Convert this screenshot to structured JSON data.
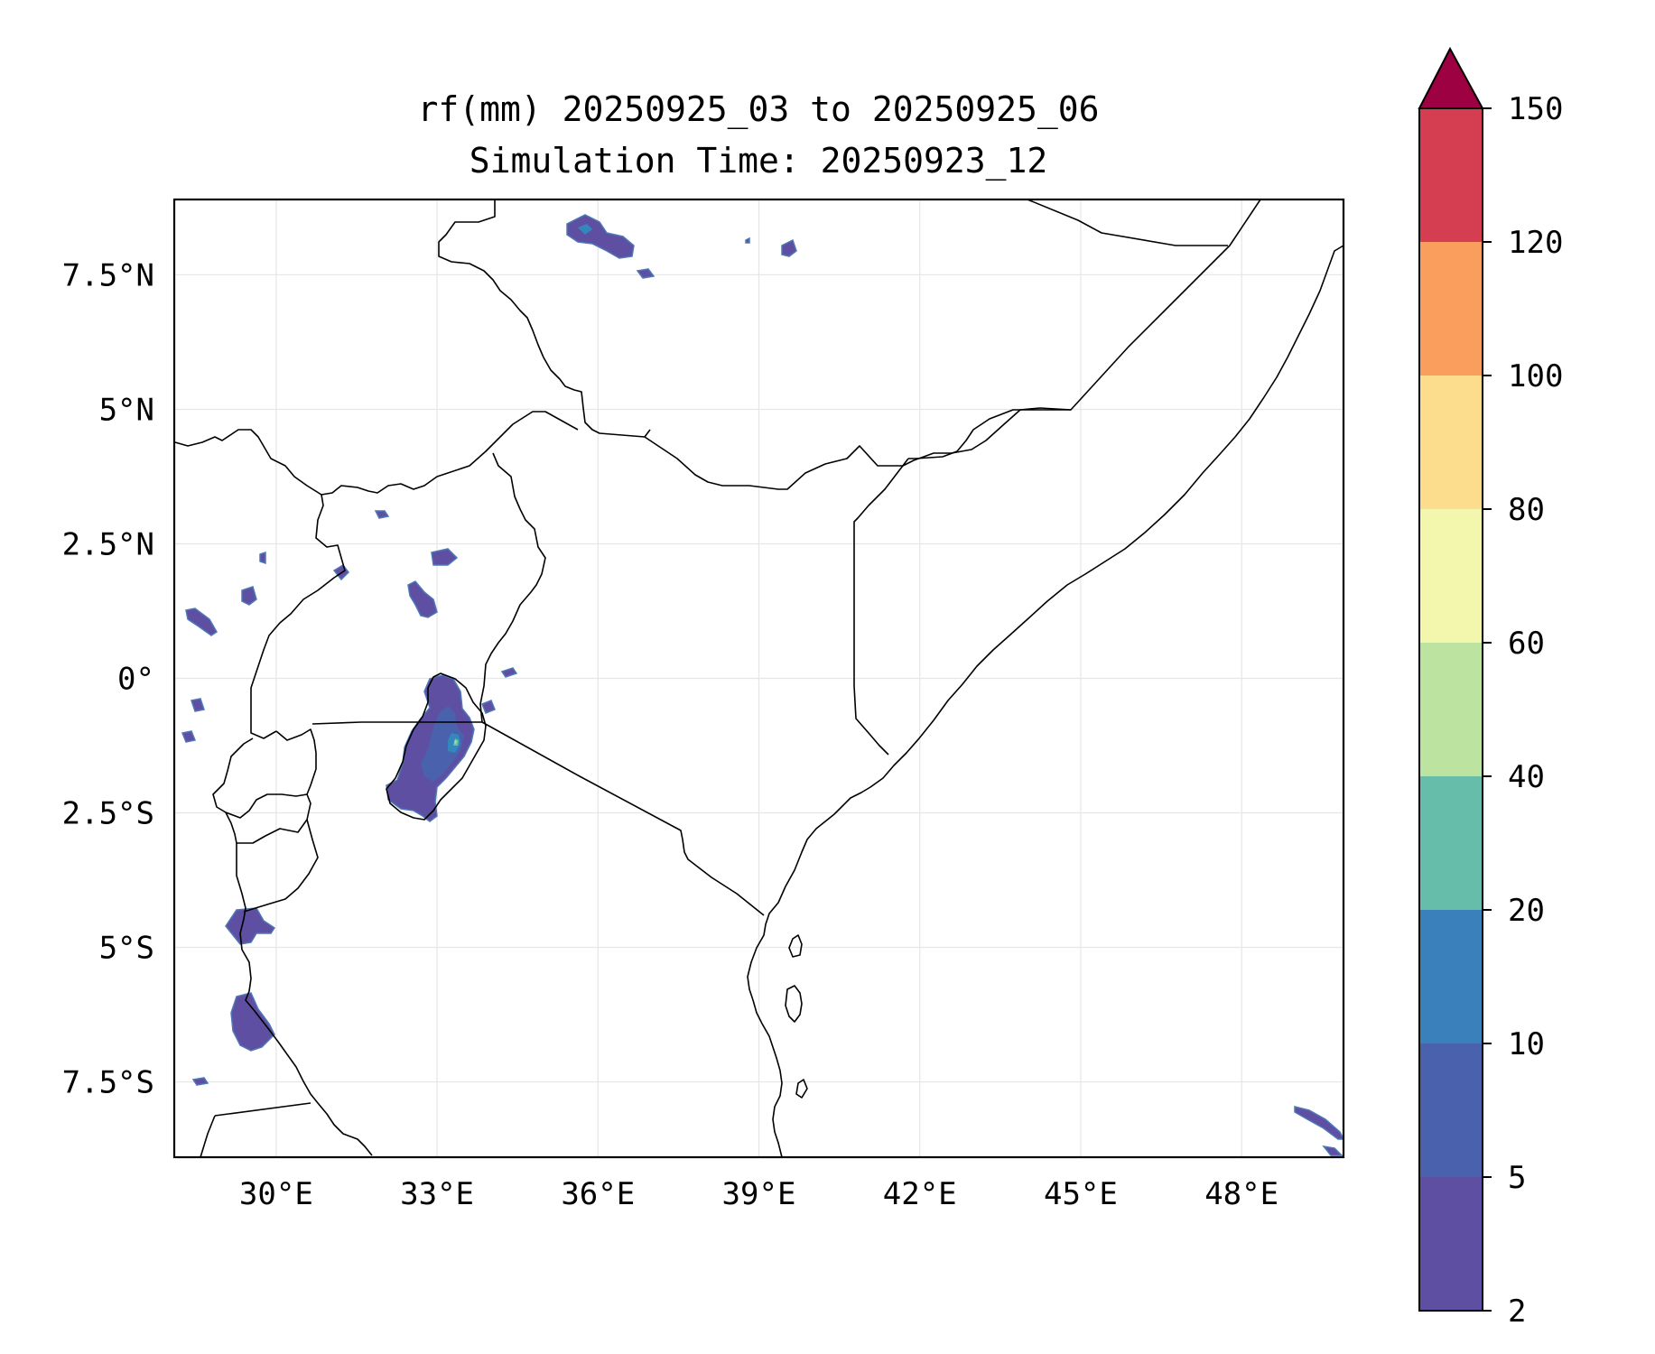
{
  "title": {
    "line1": "rf(mm) 20250925_03 to 20250925_06",
    "line2": "Simulation Time: 20250923_12"
  },
  "map": {
    "lon_range": [
      28.1,
      49.9
    ],
    "lat_range": [
      -8.9,
      8.9
    ],
    "x_ticks": [
      {
        "value": 30,
        "label": "30°E"
      },
      {
        "value": 33,
        "label": "33°E"
      },
      {
        "value": 36,
        "label": "36°E"
      },
      {
        "value": 39,
        "label": "39°E"
      },
      {
        "value": 42,
        "label": "42°E"
      },
      {
        "value": 45,
        "label": "45°E"
      },
      {
        "value": 48,
        "label": "48°E"
      }
    ],
    "y_ticks": [
      {
        "value": 7.5,
        "label": "7.5°N"
      },
      {
        "value": 5,
        "label": "5°N"
      },
      {
        "value": 2.5,
        "label": "2.5°N"
      },
      {
        "value": 0,
        "label": "0°"
      },
      {
        "value": -2.5,
        "label": "2.5°S"
      },
      {
        "value": -5,
        "label": "5°S"
      },
      {
        "value": -7.5,
        "label": "7.5°S"
      }
    ]
  },
  "colorbar": {
    "levels": [
      {
        "label": "2",
        "color": "#5e4fa2"
      },
      {
        "label": "5",
        "color": "#4a62ad"
      },
      {
        "label": "10",
        "color": "#3a80ba"
      },
      {
        "label": "20",
        "color": "#66bdaa"
      },
      {
        "label": "40",
        "color": "#bde3a0"
      },
      {
        "label": "60",
        "color": "#f3f7ae"
      },
      {
        "label": "80",
        "color": "#fbdd8d"
      },
      {
        "label": "100",
        "color": "#f99e5d"
      },
      {
        "label": "120",
        "color": "#d53e50"
      },
      {
        "label": "150",
        "color": "#9e003a"
      }
    ],
    "extend_color": "#9e0142"
  }
}
